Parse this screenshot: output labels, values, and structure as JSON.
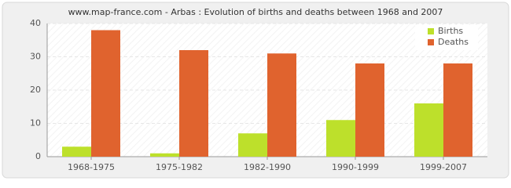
{
  "chart_data": {
    "type": "bar",
    "title": "www.map-france.com - Arbas : Evolution of births and deaths between 1968 and 2007",
    "categories": [
      "1968-1975",
      "1975-1982",
      "1982-1990",
      "1990-1999",
      "1999-2007"
    ],
    "series": [
      {
        "name": "Births",
        "color": "#bde02b",
        "values": [
          3,
          1,
          7,
          11,
          16
        ]
      },
      {
        "name": "Deaths",
        "color": "#e0632e",
        "values": [
          38,
          32,
          31,
          28,
          28
        ]
      }
    ],
    "ylim": [
      0,
      40
    ],
    "yticks": [
      0,
      10,
      20,
      30,
      40
    ],
    "grid": true,
    "legend": "top-right"
  }
}
